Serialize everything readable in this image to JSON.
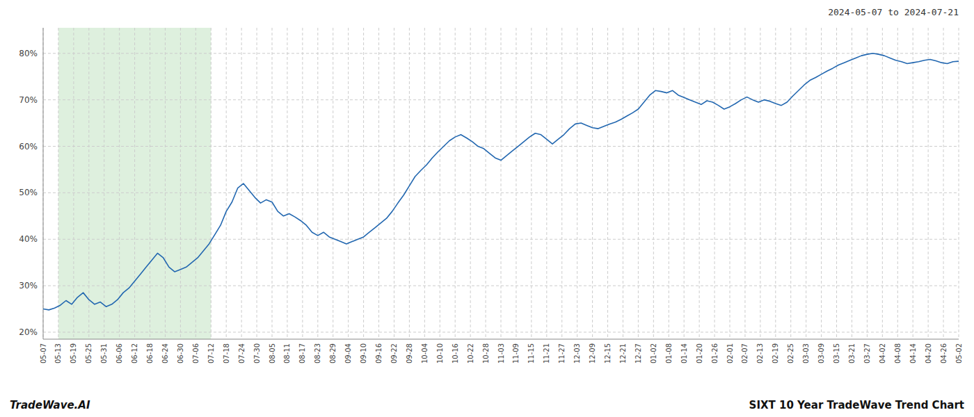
{
  "chart_data": {
    "type": "line",
    "title": "SIXT 10 Year TradeWave Trend Chart",
    "subtitle": "2024-05-07 to 2024-07-21",
    "annotations": [
      "TradeWave.AI"
    ],
    "color": "#2267b0",
    "grid": true,
    "xlim": [
      0,
      160
    ],
    "xticks": [
      {
        "value": 0,
        "label": "05-07"
      },
      {
        "value": 2.6667,
        "label": "05-13"
      },
      {
        "value": 5.3333,
        "label": "05-19"
      },
      {
        "value": 8,
        "label": "05-25"
      },
      {
        "value": 10.6667,
        "label": "05-31"
      },
      {
        "value": 13.3333,
        "label": "06-06"
      },
      {
        "value": 16,
        "label": "06-12"
      },
      {
        "value": 18.6667,
        "label": "06-18"
      },
      {
        "value": 21.3333,
        "label": "06-24"
      },
      {
        "value": 24,
        "label": "06-30"
      },
      {
        "value": 26.6667,
        "label": "07-06"
      },
      {
        "value": 29.3333,
        "label": "07-12"
      },
      {
        "value": 32,
        "label": "07-18"
      },
      {
        "value": 34.6667,
        "label": "07-24"
      },
      {
        "value": 37.3333,
        "label": "07-30"
      },
      {
        "value": 40,
        "label": "08-05"
      },
      {
        "value": 42.6667,
        "label": "08-11"
      },
      {
        "value": 45.3333,
        "label": "08-17"
      },
      {
        "value": 48,
        "label": "08-23"
      },
      {
        "value": 50.6667,
        "label": "08-29"
      },
      {
        "value": 53.3333,
        "label": "09-04"
      },
      {
        "value": 56,
        "label": "09-10"
      },
      {
        "value": 58.6667,
        "label": "09-16"
      },
      {
        "value": 61.3333,
        "label": "09-22"
      },
      {
        "value": 64,
        "label": "09-28"
      },
      {
        "value": 66.6667,
        "label": "10-04"
      },
      {
        "value": 69.3333,
        "label": "10-10"
      },
      {
        "value": 72,
        "label": "10-16"
      },
      {
        "value": 74.6667,
        "label": "10-22"
      },
      {
        "value": 77.3333,
        "label": "10-28"
      },
      {
        "value": 80,
        "label": "11-03"
      },
      {
        "value": 82.6667,
        "label": "11-09"
      },
      {
        "value": 85.3333,
        "label": "11-15"
      },
      {
        "value": 88,
        "label": "11-21"
      },
      {
        "value": 90.6667,
        "label": "11-27"
      },
      {
        "value": 93.3333,
        "label": "12-03"
      },
      {
        "value": 96,
        "label": "12-09"
      },
      {
        "value": 98.6667,
        "label": "12-15"
      },
      {
        "value": 101.3333,
        "label": "12-21"
      },
      {
        "value": 104,
        "label": "12-27"
      },
      {
        "value": 106.6667,
        "label": "01-02"
      },
      {
        "value": 109.3333,
        "label": "01-08"
      },
      {
        "value": 112,
        "label": "01-14"
      },
      {
        "value": 114.6667,
        "label": "01-20"
      },
      {
        "value": 117.3333,
        "label": "01-26"
      },
      {
        "value": 120,
        "label": "02-01"
      },
      {
        "value": 122.6667,
        "label": "02-07"
      },
      {
        "value": 125.3333,
        "label": "02-13"
      },
      {
        "value": 128,
        "label": "02-19"
      },
      {
        "value": 130.6667,
        "label": "02-25"
      },
      {
        "value": 133.3333,
        "label": "03-03"
      },
      {
        "value": 136,
        "label": "03-09"
      },
      {
        "value": 138.6667,
        "label": "03-15"
      },
      {
        "value": 141.3333,
        "label": "03-21"
      },
      {
        "value": 144,
        "label": "03-27"
      },
      {
        "value": 146.6667,
        "label": "04-02"
      },
      {
        "value": 149.3333,
        "label": "04-08"
      },
      {
        "value": 152,
        "label": "04-14"
      },
      {
        "value": 154.6667,
        "label": "04-20"
      },
      {
        "value": 157.3333,
        "label": "04-26"
      },
      {
        "value": 160,
        "label": "05-02"
      }
    ],
    "highlight": {
      "x_start": 2.6667,
      "x_end": 29.3333,
      "color": "#c8e6c8"
    },
    "ylim": [
      0.185,
      0.855
    ],
    "yticks": [
      {
        "value": 0.2,
        "label": "20%"
      },
      {
        "value": 0.3,
        "label": "30%"
      },
      {
        "value": 0.4,
        "label": "40%"
      },
      {
        "value": 0.5,
        "label": "50%"
      },
      {
        "value": 0.6,
        "label": "60%"
      },
      {
        "value": 0.7,
        "label": "70%"
      },
      {
        "value": 0.8,
        "label": "80%"
      }
    ],
    "values": [
      0.25,
      0.248,
      0.252,
      0.258,
      0.268,
      0.26,
      0.275,
      0.285,
      0.27,
      0.26,
      0.265,
      0.255,
      0.26,
      0.27,
      0.285,
      0.295,
      0.31,
      0.325,
      0.34,
      0.355,
      0.37,
      0.36,
      0.34,
      0.33,
      0.335,
      0.34,
      0.35,
      0.36,
      0.375,
      0.39,
      0.41,
      0.43,
      0.46,
      0.48,
      0.51,
      0.52,
      0.505,
      0.49,
      0.478,
      0.485,
      0.48,
      0.46,
      0.45,
      0.455,
      0.448,
      0.44,
      0.43,
      0.415,
      0.408,
      0.415,
      0.405,
      0.4,
      0.395,
      0.39,
      0.395,
      0.4,
      0.405,
      0.415,
      0.425,
      0.435,
      0.445,
      0.46,
      0.478,
      0.495,
      0.515,
      0.535,
      0.548,
      0.56,
      0.575,
      0.588,
      0.6,
      0.612,
      0.62,
      0.625,
      0.618,
      0.61,
      0.6,
      0.595,
      0.585,
      0.575,
      0.57,
      0.58,
      0.59,
      0.6,
      0.61,
      0.62,
      0.628,
      0.625,
      0.615,
      0.605,
      0.615,
      0.625,
      0.638,
      0.648,
      0.65,
      0.645,
      0.64,
      0.638,
      0.643,
      0.648,
      0.652,
      0.658,
      0.665,
      0.672,
      0.68,
      0.695,
      0.71,
      0.72,
      0.718,
      0.715,
      0.72,
      0.71,
      0.705,
      0.7,
      0.695,
      0.69,
      0.698,
      0.695,
      0.688,
      0.68,
      0.685,
      0.692,
      0.7,
      0.706,
      0.7,
      0.695,
      0.7,
      0.697,
      0.692,
      0.688,
      0.695,
      0.708,
      0.72,
      0.732,
      0.742,
      0.748,
      0.755,
      0.762,
      0.768,
      0.775,
      0.78,
      0.785,
      0.79,
      0.795,
      0.798,
      0.8,
      0.798,
      0.795,
      0.79,
      0.785,
      0.782,
      0.778,
      0.78,
      0.782,
      0.785,
      0.787,
      0.784,
      0.78,
      0.778,
      0.782,
      0.783
    ]
  }
}
